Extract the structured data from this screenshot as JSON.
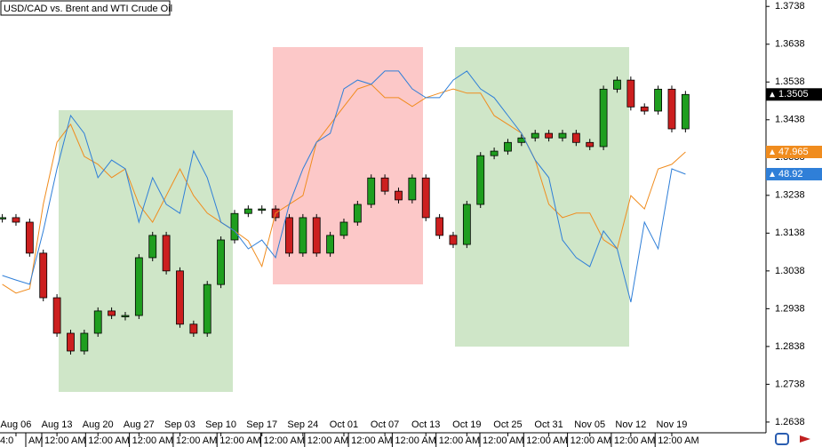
{
  "chart_data": {
    "type": "candlestick",
    "title": "USD/CAD vs. Brent and WTI Crude Oil",
    "categories": [
      null,
      "Aug 06",
      null,
      null,
      "Aug 13",
      null,
      null,
      "Aug 20",
      null,
      null,
      "Aug 27",
      null,
      null,
      "Sep 03",
      null,
      null,
      "Sep 10",
      null,
      null,
      "Sep 17",
      null,
      null,
      "Sep 24",
      null,
      null,
      "Oct 01",
      null,
      null,
      "Oct 07",
      null,
      null,
      "Oct 13",
      null,
      null,
      "Oct 19",
      null,
      null,
      "Oct 25",
      null,
      null,
      "Oct 31",
      null,
      null,
      "Nov 05",
      null,
      null,
      "Nov 12",
      null,
      null,
      "Nov 19",
      null
    ],
    "time_labels": [
      "4:0",
      "AM",
      "12:00 AM",
      "12:00 AM",
      "12:00 AM",
      "12:00 AM",
      "12:00 AM",
      "12:00 AM",
      "12:00 AM",
      "12:00 AM",
      "12:00 AM",
      "12:00 AM",
      "12:00 AM",
      "12:00 AM",
      "12:00 AM",
      "12:00 AM",
      "12:00 AM"
    ],
    "ylim": [
      1.2619,
      1.3755
    ],
    "yticks": [
      1.2638,
      1.2738,
      1.2838,
      1.2938,
      1.3038,
      1.3138,
      1.3238,
      1.3338,
      1.3438,
      1.3538,
      1.3638,
      1.3738
    ],
    "series": [
      {
        "type": "candlestick",
        "color": "#000000",
        "up_color": "#1f9e1f",
        "down_color": "#cc1f1f",
        "values": [
          1.3179,
          1.3167,
          1.3085,
          1.2967,
          1.2873,
          1.2826,
          1.2873,
          1.2932,
          1.292,
          1.292,
          1.3073,
          1.3132,
          1.3038,
          1.2897,
          1.2873,
          1.3002,
          1.312,
          1.319,
          1.3202,
          1.3202,
          1.3179,
          1.3085,
          1.3179,
          1.3085,
          1.3132,
          1.3167,
          1.3214,
          1.3284,
          1.3249,
          1.3226,
          1.3284,
          1.3179,
          1.3132,
          1.3108,
          1.3214,
          1.3343,
          1.3355,
          1.3378,
          1.339,
          1.3402,
          1.339,
          1.3402,
          1.3378,
          1.3367,
          1.3519,
          1.3543,
          1.3472,
          1.3461,
          1.3519,
          1.3414,
          1.3505
        ]
      },
      {
        "type": "line",
        "color": "#f08c1e",
        "ylim": [
          37.565,
          53.665
        ],
        "values": [
          43.0,
          42.67,
          42.83,
          46.0,
          48.33,
          49.0,
          47.8,
          47.5,
          47.0,
          47.33,
          46.0,
          45.33,
          46.33,
          47.33,
          46.33,
          45.67,
          45.33,
          45.0,
          44.63,
          43.67,
          45.67,
          46.0,
          46.33,
          48.33,
          49.0,
          49.67,
          50.33,
          50.5,
          50.0,
          50.0,
          49.67,
          50.0,
          50.17,
          50.33,
          50.17,
          50.17,
          49.33,
          49.0,
          48.67,
          47.67,
          46.0,
          45.5,
          45.67,
          45.67,
          44.67,
          44.33,
          46.33,
          45.83,
          47.33,
          47.5,
          47.965
        ]
      },
      {
        "type": "line",
        "color": "#2f7fd8",
        "ylim": [
          39.353,
          55.453
        ],
        "values": [
          45.12,
          44.95,
          44.79,
          46.79,
          49.12,
          51.12,
          50.45,
          48.79,
          49.45,
          49.12,
          47.12,
          48.79,
          47.79,
          47.45,
          49.79,
          48.79,
          47.12,
          46.79,
          46.12,
          46.45,
          45.79,
          47.79,
          49.12,
          50.12,
          50.45,
          52.12,
          52.45,
          52.29,
          52.79,
          52.79,
          52.12,
          51.79,
          51.79,
          52.45,
          52.79,
          52.12,
          51.79,
          51.12,
          50.45,
          49.45,
          48.79,
          46.45,
          45.79,
          45.45,
          46.79,
          46.12,
          44.12,
          47.12,
          46.12,
          49.12,
          48.92
        ]
      }
    ]
  }
}
